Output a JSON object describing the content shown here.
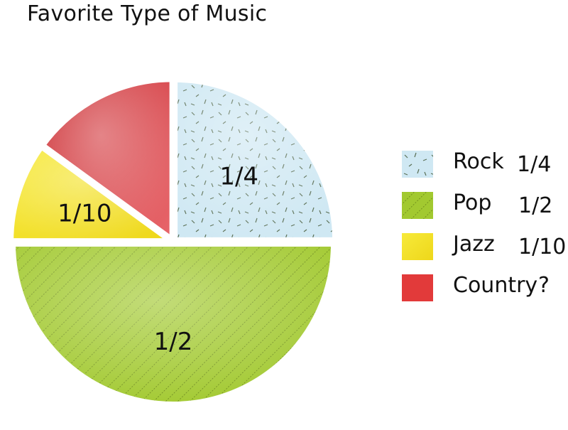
{
  "chart_data": {
    "type": "pie",
    "title": "Favorite Type of Music",
    "slices": [
      {
        "name": "Rock",
        "value": 0.25,
        "label": "1/4",
        "color": "#c9e6f2",
        "pattern": "dashes"
      },
      {
        "name": "Pop",
        "value": 0.5,
        "label": "1/2",
        "color": "#9ec72a",
        "pattern": "diagonal-dots"
      },
      {
        "name": "Jazz",
        "value": 0.1,
        "label": "1/10",
        "color": "#f2e21c",
        "pattern": "solid"
      },
      {
        "name": "Country",
        "value": 0.15,
        "label": "",
        "color": "#d8353a",
        "pattern": "solid"
      }
    ],
    "legend": {
      "placement": "right",
      "items": [
        {
          "name": "Rock",
          "fraction": "1/4"
        },
        {
          "name": "Pop",
          "fraction": "1/2"
        },
        {
          "name": "Jazz",
          "fraction": "1/10"
        },
        {
          "name": "Country",
          "fraction": "?"
        }
      ]
    }
  }
}
